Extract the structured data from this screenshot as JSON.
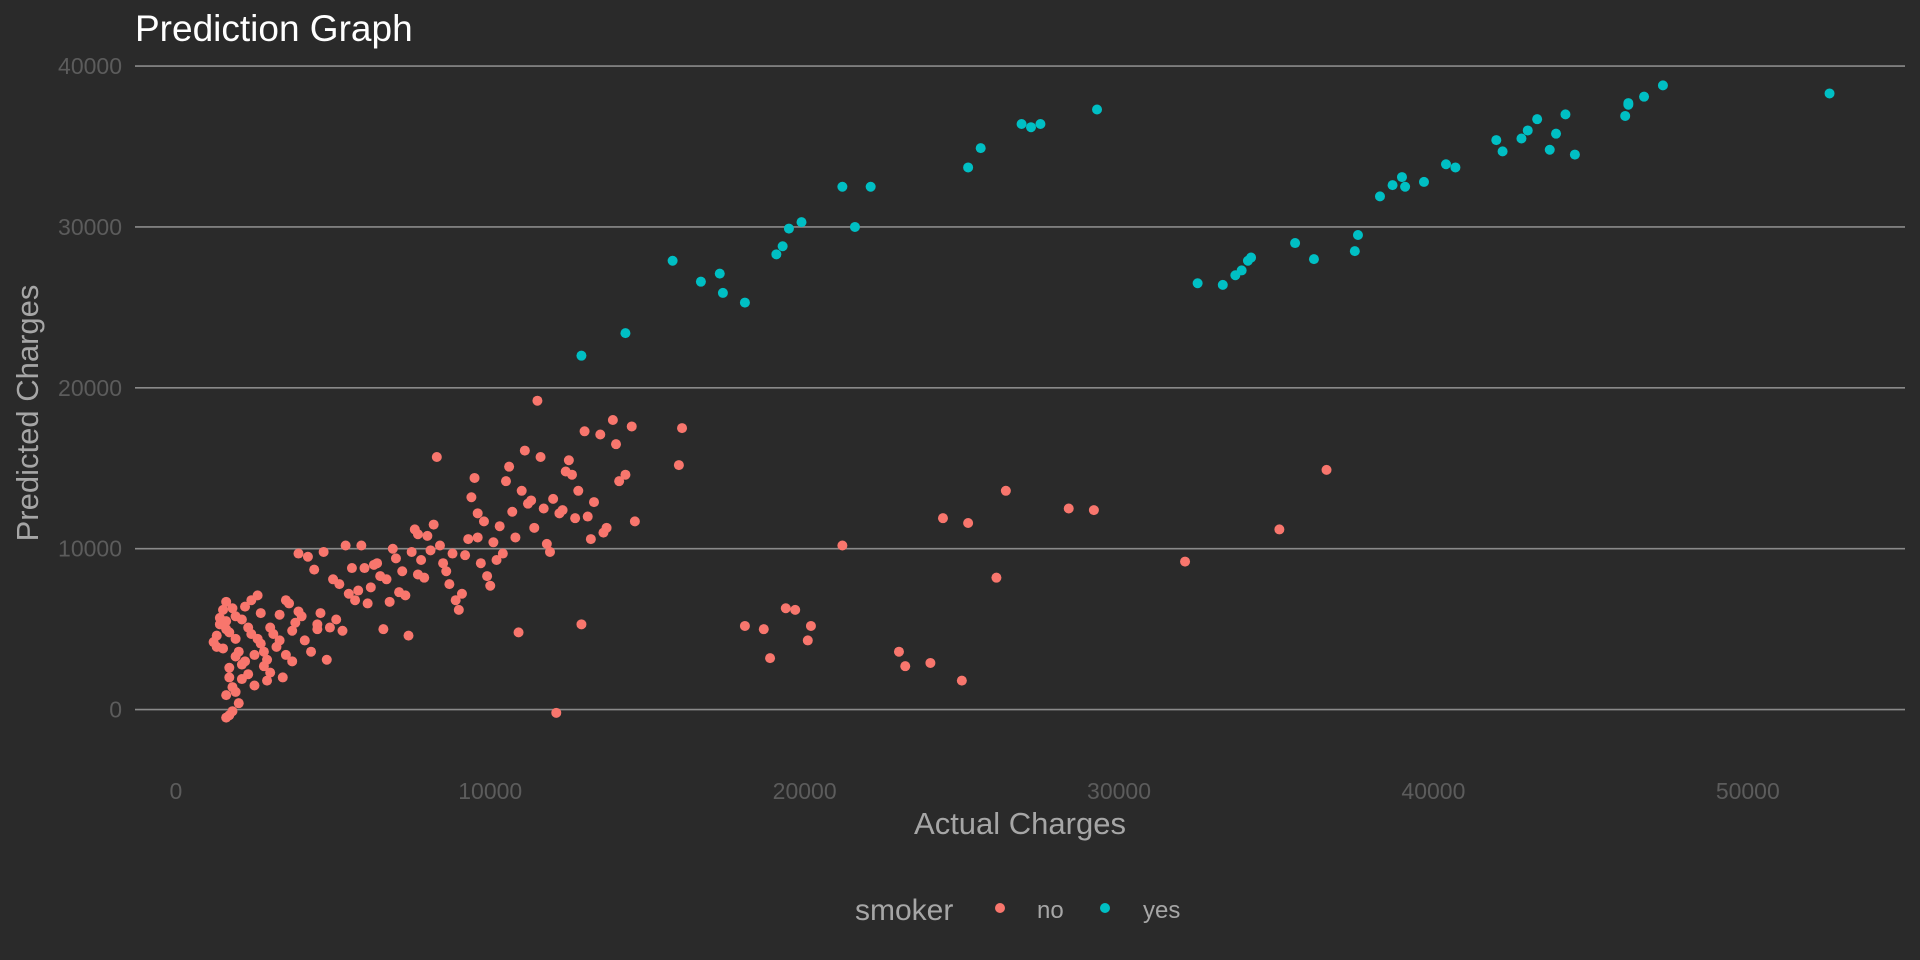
{
  "chart_data": {
    "type": "scatter",
    "title": "Prediction Graph",
    "xlabel": "Actual Charges",
    "ylabel": "Predicted Charges",
    "xlim": [
      -1300,
      55000
    ],
    "ylim": [
      -2200,
      41000
    ],
    "x_ticks": [
      0,
      10000,
      20000,
      30000,
      40000,
      50000
    ],
    "x_tick_labels": [
      "0",
      "10000",
      "20000",
      "30000",
      "40000",
      "50000"
    ],
    "y_ticks": [
      0,
      10000,
      20000,
      30000,
      40000
    ],
    "y_tick_labels": [
      "0",
      "10000",
      "20000",
      "30000",
      "40000"
    ],
    "grid": "horizontal major lines",
    "legend": {
      "position": "bottom",
      "title": "smoker",
      "entries": [
        "no",
        "yes"
      ]
    },
    "series": [
      {
        "name": "no",
        "color": "#f8766d",
        "points": [
          [
            1200,
            4200
          ],
          [
            1300,
            4600
          ],
          [
            1500,
            6200
          ],
          [
            1600,
            5500
          ],
          [
            1600,
            5000
          ],
          [
            1500,
            3800
          ],
          [
            1700,
            2600
          ],
          [
            1800,
            6300
          ],
          [
            1900,
            5800
          ],
          [
            1900,
            4400
          ],
          [
            2000,
            3600
          ],
          [
            2100,
            2800
          ],
          [
            2100,
            1900
          ],
          [
            2200,
            6400
          ],
          [
            2300,
            5100
          ],
          [
            2400,
            4700
          ],
          [
            2500,
            3400
          ],
          [
            2600,
            7100
          ],
          [
            2700,
            6000
          ],
          [
            1700,
            2000
          ],
          [
            1800,
            1400
          ],
          [
            1600,
            900
          ],
          [
            1900,
            1100
          ],
          [
            2000,
            400
          ],
          [
            1800,
            -100
          ],
          [
            1600,
            -500
          ],
          [
            1700,
            -350
          ],
          [
            2800,
            2700
          ],
          [
            2900,
            1800
          ],
          [
            3000,
            2300
          ],
          [
            3200,
            3900
          ],
          [
            3300,
            4300
          ],
          [
            3500,
            6800
          ],
          [
            3600,
            6600
          ],
          [
            3700,
            4900
          ],
          [
            3800,
            5400
          ],
          [
            3900,
            9700
          ],
          [
            4200,
            9500
          ],
          [
            4400,
            8700
          ],
          [
            4500,
            5300
          ],
          [
            4600,
            6000
          ],
          [
            4700,
            9800
          ],
          [
            4800,
            3100
          ],
          [
            5000,
            8100
          ],
          [
            5100,
            5600
          ],
          [
            5200,
            7800
          ],
          [
            5400,
            10200
          ],
          [
            5600,
            8800
          ],
          [
            5700,
            6800
          ],
          [
            5900,
            10200
          ],
          [
            6000,
            8800
          ],
          [
            6200,
            7600
          ],
          [
            6400,
            9100
          ],
          [
            6500,
            8300
          ],
          [
            6600,
            5000
          ],
          [
            6800,
            6700
          ],
          [
            7000,
            9400
          ],
          [
            7200,
            8600
          ],
          [
            7300,
            7100
          ],
          [
            7400,
            4600
          ],
          [
            7500,
            9800
          ],
          [
            7600,
            11200
          ],
          [
            7700,
            10900
          ],
          [
            7900,
            8200
          ],
          [
            8000,
            10800
          ],
          [
            8200,
            11500
          ],
          [
            8300,
            15700
          ],
          [
            8400,
            10200
          ],
          [
            8500,
            9100
          ],
          [
            8700,
            7800
          ],
          [
            8900,
            6800
          ],
          [
            9000,
            6200
          ],
          [
            9200,
            9600
          ],
          [
            9400,
            13200
          ],
          [
            9500,
            14400
          ],
          [
            9600,
            10700
          ],
          [
            9800,
            11700
          ],
          [
            9900,
            8300
          ],
          [
            10000,
            7700
          ],
          [
            10100,
            10400
          ],
          [
            10300,
            11400
          ],
          [
            10400,
            9700
          ],
          [
            10500,
            14200
          ],
          [
            10600,
            15100
          ],
          [
            10700,
            12300
          ],
          [
            10900,
            4800
          ],
          [
            11000,
            13600
          ],
          [
            11100,
            16100
          ],
          [
            11200,
            12800
          ],
          [
            11400,
            11300
          ],
          [
            11500,
            19200
          ],
          [
            11600,
            15700
          ],
          [
            11700,
            12500
          ],
          [
            11800,
            10300
          ],
          [
            11900,
            9800
          ],
          [
            12000,
            13100
          ],
          [
            12100,
            -200
          ],
          [
            12300,
            12400
          ],
          [
            12400,
            14800
          ],
          [
            12500,
            15500
          ],
          [
            12700,
            11900
          ],
          [
            12800,
            13600
          ],
          [
            12900,
            5300
          ],
          [
            13000,
            17300
          ],
          [
            13100,
            12000
          ],
          [
            13300,
            12900
          ],
          [
            13500,
            17100
          ],
          [
            13600,
            11000
          ],
          [
            13700,
            11300
          ],
          [
            13900,
            18000
          ],
          [
            14000,
            16500
          ],
          [
            14100,
            14200
          ],
          [
            14300,
            14600
          ],
          [
            14500,
            17600
          ],
          [
            14600,
            11700
          ],
          [
            16000,
            15200
          ],
          [
            16100,
            17500
          ],
          [
            18100,
            5200
          ],
          [
            18700,
            5000
          ],
          [
            18900,
            3200
          ],
          [
            19400,
            6300
          ],
          [
            19700,
            6200
          ],
          [
            20100,
            4300
          ],
          [
            20200,
            5200
          ],
          [
            21200,
            10200
          ],
          [
            23000,
            3600
          ],
          [
            23200,
            2700
          ],
          [
            24000,
            2900
          ],
          [
            24400,
            11900
          ],
          [
            25000,
            1800
          ],
          [
            25200,
            11600
          ],
          [
            26100,
            8200
          ],
          [
            26400,
            13600
          ],
          [
            28400,
            12500
          ],
          [
            29200,
            12400
          ],
          [
            32100,
            9200
          ],
          [
            35100,
            11200
          ],
          [
            36600,
            14900
          ],
          [
            1300,
            3900
          ],
          [
            1400,
            5300
          ],
          [
            1700,
            4800
          ],
          [
            2200,
            3000
          ],
          [
            2300,
            2200
          ],
          [
            2500,
            1500
          ],
          [
            2700,
            4100
          ],
          [
            2800,
            3600
          ],
          [
            3000,
            5100
          ],
          [
            3100,
            4700
          ],
          [
            3400,
            2000
          ],
          [
            3500,
            3400
          ],
          [
            3700,
            3000
          ],
          [
            4000,
            5800
          ],
          [
            4100,
            4300
          ],
          [
            4300,
            3600
          ],
          [
            4900,
            5100
          ],
          [
            5300,
            4900
          ],
          [
            5500,
            7200
          ],
          [
            6100,
            6600
          ],
          [
            6700,
            8100
          ],
          [
            6900,
            10000
          ],
          [
            7100,
            7300
          ],
          [
            7800,
            9300
          ],
          [
            8100,
            9900
          ],
          [
            8600,
            8600
          ],
          [
            9100,
            7200
          ],
          [
            9300,
            10600
          ],
          [
            9700,
            9100
          ],
          [
            10200,
            9300
          ],
          [
            1400,
            5700
          ],
          [
            1600,
            6700
          ],
          [
            1900,
            3300
          ],
          [
            2100,
            5600
          ],
          [
            2400,
            6800
          ],
          [
            2600,
            4400
          ],
          [
            2900,
            3100
          ],
          [
            3300,
            5900
          ],
          [
            3900,
            6100
          ],
          [
            4500,
            5000
          ],
          [
            5800,
            7400
          ],
          [
            6300,
            9000
          ],
          [
            7700,
            8400
          ],
          [
            8800,
            9700
          ],
          [
            9600,
            12200
          ],
          [
            10800,
            10700
          ],
          [
            11300,
            13000
          ],
          [
            12200,
            12200
          ],
          [
            12600,
            14600
          ],
          [
            13200,
            10600
          ]
        ]
      },
      {
        "name": "yes",
        "color": "#00bfc4",
        "points": [
          [
            12900,
            22000
          ],
          [
            14300,
            23400
          ],
          [
            15800,
            27900
          ],
          [
            16700,
            26600
          ],
          [
            17300,
            27100
          ],
          [
            17400,
            25900
          ],
          [
            18100,
            25300
          ],
          [
            19100,
            28300
          ],
          [
            19300,
            28800
          ],
          [
            19500,
            29900
          ],
          [
            19900,
            30300
          ],
          [
            21200,
            32500
          ],
          [
            21600,
            30000
          ],
          [
            22100,
            32500
          ],
          [
            25200,
            33700
          ],
          [
            25600,
            34900
          ],
          [
            26900,
            36400
          ],
          [
            27200,
            36200
          ],
          [
            27500,
            36400
          ],
          [
            29300,
            37300
          ],
          [
            32500,
            26500
          ],
          [
            33300,
            26400
          ],
          [
            33700,
            27000
          ],
          [
            33900,
            27300
          ],
          [
            34100,
            27900
          ],
          [
            34200,
            28100
          ],
          [
            35600,
            29000
          ],
          [
            36200,
            28000
          ],
          [
            37500,
            28500
          ],
          [
            37600,
            29500
          ],
          [
            38300,
            31900
          ],
          [
            38700,
            32600
          ],
          [
            39000,
            33100
          ],
          [
            39100,
            32500
          ],
          [
            39700,
            32800
          ],
          [
            40400,
            33900
          ],
          [
            40700,
            33700
          ],
          [
            42000,
            35400
          ],
          [
            42200,
            34700
          ],
          [
            42800,
            35500
          ],
          [
            43000,
            36000
          ],
          [
            43300,
            36700
          ],
          [
            43700,
            34800
          ],
          [
            43900,
            35800
          ],
          [
            44200,
            37000
          ],
          [
            44500,
            34500
          ],
          [
            46100,
            36900
          ],
          [
            46200,
            37600
          ],
          [
            46200,
            37700
          ],
          [
            46700,
            38100
          ],
          [
            47300,
            38800
          ],
          [
            52600,
            38300
          ]
        ]
      }
    ]
  }
}
